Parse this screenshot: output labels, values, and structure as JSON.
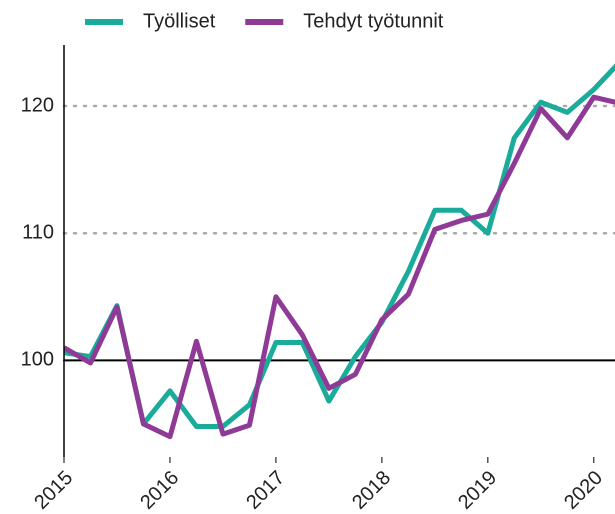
{
  "chart_data": {
    "type": "line",
    "x": [
      2015,
      2015.25,
      2015.5,
      2015.75,
      2016,
      2016.25,
      2016.5,
      2016.75,
      2017,
      2017.25,
      2017.5,
      2017.75,
      2018,
      2018.25,
      2018.5,
      2018.75,
      2019,
      2019.25,
      2019.5,
      2019.75,
      2020,
      2020.25
    ],
    "series": [
      {
        "name": "Työlliset",
        "color": "#1aab9b",
        "values": [
          100.6,
          100.3,
          104.3,
          95.0,
          97.6,
          94.8,
          94.8,
          96.5,
          101.4,
          101.4,
          96.8,
          100.3,
          103.0,
          107.0,
          111.8,
          111.8,
          110.0,
          117.5,
          120.3,
          119.5,
          121.3,
          123.5
        ]
      },
      {
        "name": "Tehdyt työtunnit",
        "color": "#8e3a96",
        "values": [
          101.0,
          99.8,
          104.2,
          95.0,
          94.0,
          101.5,
          94.2,
          94.9,
          105.0,
          102.0,
          97.8,
          98.9,
          103.2,
          105.2,
          110.3,
          111.0,
          111.5,
          115.5,
          119.8,
          117.5,
          120.7,
          120.2
        ]
      }
    ],
    "xlim": [
      2015,
      2020.2
    ],
    "xticks": [
      2015,
      2016,
      2017,
      2018,
      2019,
      2020
    ],
    "ylim": [
      92.4,
      124.8
    ],
    "yticks": [
      100,
      110,
      120
    ],
    "grid": true,
    "legend": "top"
  }
}
